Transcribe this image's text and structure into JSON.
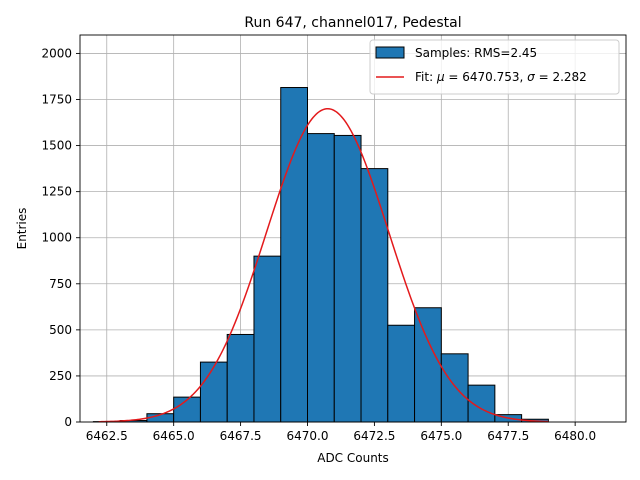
{
  "chart_data": {
    "type": "bar",
    "title": "Run 647, channel017, Pedestal",
    "xlabel": "ADC Counts",
    "ylabel": "Entries",
    "xlim": [
      6461.5,
      6481.9
    ],
    "ylim": [
      0,
      2100
    ],
    "grid": true,
    "legend_position": "top-right",
    "x_ticks": [
      6462.5,
      6465.0,
      6467.5,
      6470.0,
      6472.5,
      6475.0,
      6477.5,
      6480.0
    ],
    "x_tick_labels": [
      "6462.5",
      "6465.0",
      "6467.5",
      "6470.0",
      "6472.5",
      "6475.0",
      "6477.5",
      "6480.0"
    ],
    "y_ticks": [
      0,
      250,
      500,
      750,
      1000,
      1250,
      1500,
      1750,
      2000
    ],
    "y_tick_labels": [
      "0",
      "250",
      "500",
      "750",
      "1000",
      "1250",
      "1500",
      "1750",
      "2000"
    ],
    "histogram": {
      "name": "Samples: RMS=2.45",
      "color": "#1f77b4",
      "edge_color": "#000000",
      "bin_edges": [
        6462,
        6463,
        6464,
        6465,
        6466,
        6467,
        6468,
        6469,
        6470,
        6471,
        6472,
        6473,
        6474,
        6475,
        6476,
        6477,
        6478,
        6479,
        6480,
        6481
      ],
      "counts": [
        2,
        8,
        45,
        135,
        325,
        475,
        900,
        1815,
        1565,
        1555,
        1375,
        525,
        620,
        370,
        200,
        40,
        15,
        0,
        0
      ]
    },
    "fit": {
      "name": "Fit: μ = 6470.753, σ = 2.282",
      "legend_prefix": "Fit: ",
      "legend_mu": "μ",
      "legend_mu_value": " = 6470.753, ",
      "legend_sigma": "σ",
      "legend_sigma_value": " = 2.282",
      "color": "#e31a1c",
      "mu": 6470.753,
      "sigma": 2.282,
      "amplitude": 1700,
      "x_range": [
        6462.2,
        6479.0
      ]
    }
  }
}
